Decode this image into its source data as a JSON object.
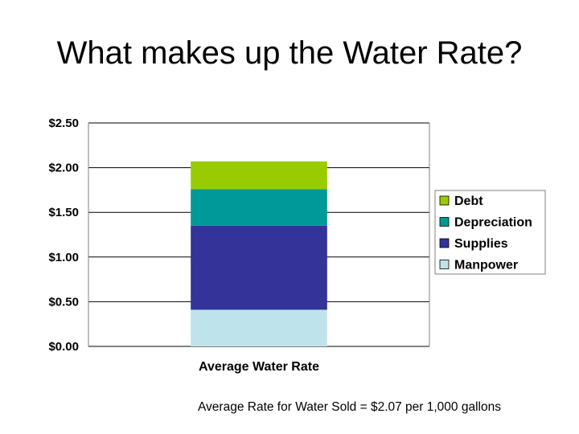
{
  "slide": {
    "title": "What makes up the Water Rate?",
    "footnote": "Average Rate for Water Sold = $2.07 per 1,000 gallons"
  },
  "chart_data": {
    "type": "bar",
    "stacked": true,
    "categories": [
      "Average Water Rate"
    ],
    "series": [
      {
        "name": "Manpower",
        "values": [
          0.41
        ],
        "color": "#BFE3EA"
      },
      {
        "name": "Supplies",
        "values": [
          0.94
        ],
        "color": "#333399"
      },
      {
        "name": "Depreciation",
        "values": [
          0.41
        ],
        "color": "#009999"
      },
      {
        "name": "Debt",
        "values": [
          0.31
        ],
        "color": "#99CC00"
      }
    ],
    "total": 2.07,
    "ylim": [
      0,
      2.5
    ],
    "yticks": [
      0,
      0.5,
      1.0,
      1.5,
      2.0,
      2.5
    ],
    "ytick_labels": [
      "$0.00",
      "$0.50",
      "$1.00",
      "$1.50",
      "$2.00",
      "$2.50"
    ],
    "legend": [
      "Debt",
      "Depreciation",
      "Supplies",
      "Manpower"
    ],
    "legend_position": "right",
    "grid": true
  }
}
